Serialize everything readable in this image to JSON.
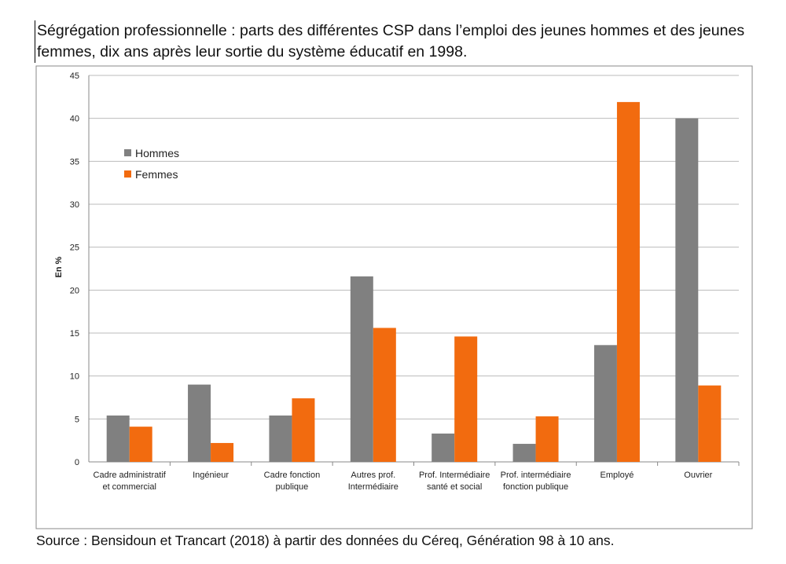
{
  "title": "Ségrégation professionnelle : parts des différentes CSP dans l’emploi des jeunes hommes et des jeunes femmes, dix ans après leur sortie du système éducatif en 1998.",
  "source": "Source : Bensidoun et Trancart (2018) à partir des données du Céreq, Génération 98 à 10 ans.",
  "chart_data": {
    "type": "bar",
    "title": "",
    "xlabel": "",
    "ylabel": "En %",
    "ylim": [
      0,
      45
    ],
    "yticks": [
      0,
      5,
      10,
      15,
      20,
      25,
      30,
      35,
      40,
      45
    ],
    "grid": true,
    "legend_position": "top-left",
    "categories": [
      [
        "Cadre administratif",
        "et commercial"
      ],
      [
        "Ingénieur"
      ],
      [
        "Cadre fonction",
        "publique"
      ],
      [
        "Autres prof.",
        "Intermédiaire"
      ],
      [
        "Prof. Intermédiaire",
        "santé et social"
      ],
      [
        "Prof. intermédiaire",
        "fonction publique"
      ],
      [
        "Employé"
      ],
      [
        "Ouvrier"
      ]
    ],
    "series": [
      {
        "name": "Hommes",
        "color": "#808080",
        "values": [
          5.4,
          9.0,
          5.4,
          21.6,
          3.3,
          2.1,
          13.6,
          40.0
        ]
      },
      {
        "name": "Femmes",
        "color": "#F26B0F",
        "values": [
          4.1,
          2.2,
          7.4,
          15.6,
          14.6,
          5.3,
          41.9,
          8.9
        ]
      }
    ]
  }
}
